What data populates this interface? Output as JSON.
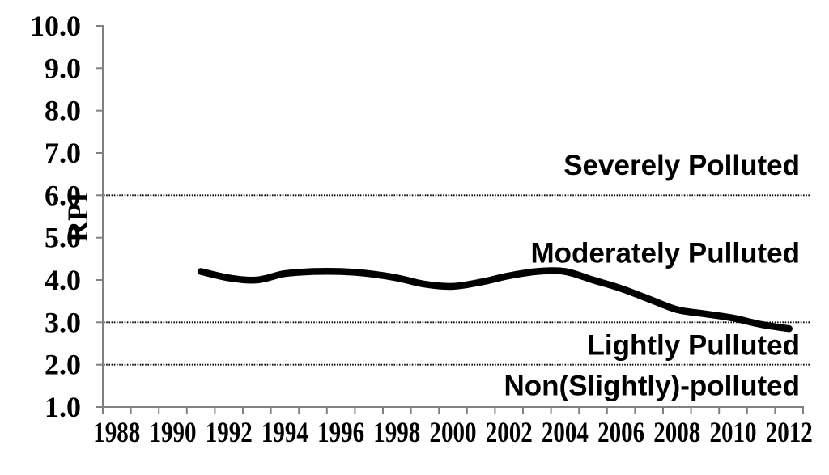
{
  "chart_data": {
    "type": "line",
    "title": "",
    "xlabel": "",
    "ylabel": "RPI",
    "ylim": [
      1.0,
      10.0
    ],
    "ytick_values": [
      10,
      9,
      8,
      7,
      6,
      5,
      4,
      3,
      2,
      1
    ],
    "ytick_labels": [
      "10.0",
      "9.0",
      "8.0",
      "7.0",
      "6.0",
      "5.0",
      "4.0",
      "3.0",
      "2.0",
      "1.0"
    ],
    "x_category_range": [
      1988,
      2012
    ],
    "xtick_label_years": [
      1988,
      1990,
      1992,
      1994,
      1996,
      1998,
      2000,
      2002,
      2004,
      2006,
      2008,
      2010,
      2012
    ],
    "xtick_labels": [
      "1988",
      "1990",
      "1992",
      "1994",
      "1996",
      "1998",
      "2000",
      "2002",
      "2004",
      "2006",
      "2008",
      "2010",
      "2012"
    ],
    "grid": false,
    "legend": "none",
    "axis_color": "#808080",
    "series": [
      {
        "name": "RPI",
        "color": "#000000",
        "x": [
          1991,
          1992,
          1993,
          1994,
          1995,
          1996,
          1997,
          1998,
          1999,
          2000,
          2001,
          2002,
          2003,
          2004,
          2005,
          2006,
          2007,
          2008,
          2009,
          2010,
          2011,
          2012
        ],
        "values": [
          4.2,
          4.05,
          4.0,
          4.15,
          4.2,
          4.2,
          4.15,
          4.05,
          3.9,
          3.85,
          3.95,
          4.1,
          4.2,
          4.2,
          4.0,
          3.8,
          3.55,
          3.3,
          3.2,
          3.1,
          2.95,
          2.85
        ]
      }
    ],
    "threshold_lines": {
      "values": [
        6.0,
        3.0,
        2.0
      ],
      "style": "dotted",
      "color": "#000000"
    },
    "zone_labels": [
      {
        "text": "Severely Polluted",
        "value": 6.7
      },
      {
        "text": "Moderately Pulluted",
        "value": 4.63
      },
      {
        "text": "Lightly Pulluted",
        "value": 2.45
      },
      {
        "text": "Non(Slightly)-polluted",
        "value": 1.5
      }
    ]
  }
}
